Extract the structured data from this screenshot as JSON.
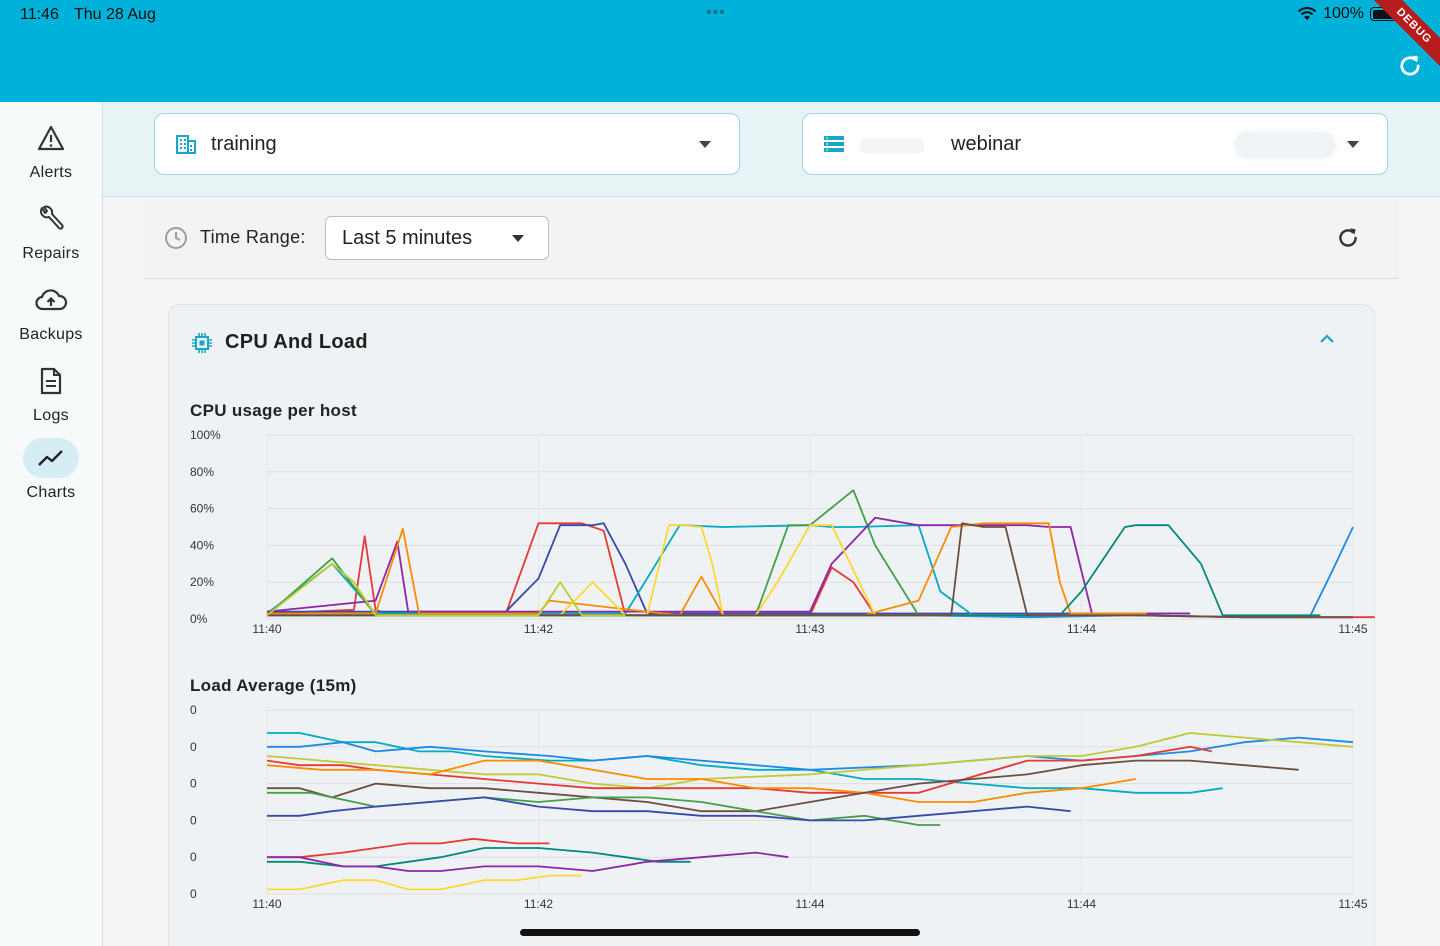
{
  "status_bar": {
    "time": "11:46",
    "date": "Thu 28 Aug",
    "dots": "•••",
    "battery": "100%",
    "debug": "DEBUG"
  },
  "nav": {
    "items": [
      {
        "label": "Alerts",
        "icon": "warning-icon"
      },
      {
        "label": "Repairs",
        "icon": "wrench-icon"
      },
      {
        "label": "Backups",
        "icon": "cloud-upload-icon"
      },
      {
        "label": "Logs",
        "icon": "document-icon"
      },
      {
        "label": "Charts",
        "icon": "chart-line-icon",
        "active": true
      }
    ]
  },
  "selectors": {
    "organization": {
      "value": "training",
      "icon": "building-icon"
    },
    "server": {
      "value": "webinar",
      "icon": "server-list-icon"
    }
  },
  "time_range": {
    "label": "Time Range:",
    "value": "Last 5 minutes"
  },
  "card": {
    "title": "CPU And Load",
    "icon": "cpu-icon"
  },
  "colors": {
    "accent": "#00b1d9",
    "primary_text": "#1f1f1f"
  },
  "chart_data": [
    {
      "type": "line",
      "title": "CPU usage per host",
      "ylim": [
        0,
        100
      ],
      "y_ticks": [
        "0%",
        "20%",
        "40%",
        "60%",
        "80%",
        "100%"
      ],
      "x_ticks": [
        "11:40",
        "11:42",
        "11:43",
        "11:44",
        "11:45"
      ],
      "grid": true,
      "series": [
        {
          "color": "#e53935",
          "x": [
            0,
            0.08,
            0.09,
            0.1,
            0.11,
            0.22,
            0.25,
            0.29,
            0.31,
            0.33,
            0.5,
            0.52,
            0.54,
            0.56,
            0.58,
            0.62,
            0.7,
            0.8,
            0.9,
            1.0,
            1.02
          ],
          "y": [
            3,
            5,
            45,
            5,
            3,
            3,
            52,
            52,
            48,
            2,
            2,
            28,
            20,
            2,
            2,
            2,
            2,
            2,
            1,
            1,
            1
          ]
        },
        {
          "color": "#1e88e5",
          "x": [
            0,
            0.1,
            0.3,
            0.5,
            0.6,
            0.7,
            0.8,
            0.9,
            0.96,
            0.98,
            1.0
          ],
          "y": [
            2,
            2,
            2,
            2,
            2,
            1,
            2,
            1,
            1,
            25,
            50
          ]
        },
        {
          "color": "#3949ab",
          "x": [
            0,
            0.1,
            0.22,
            0.25,
            0.27,
            0.3,
            0.31,
            0.33,
            0.35,
            0.5,
            0.7,
            0.85
          ],
          "y": [
            4,
            4,
            4,
            22,
            51,
            51,
            52,
            30,
            3,
            3,
            3,
            3
          ]
        },
        {
          "color": "#00acc1",
          "x": [
            0,
            0.06,
            0.1,
            0.2,
            0.33,
            0.35,
            0.38,
            0.42,
            0.5,
            0.52,
            0.54,
            0.6,
            0.62,
            0.65,
            0.67,
            0.75
          ],
          "y": [
            3,
            30,
            3,
            3,
            3,
            22,
            51,
            50,
            51,
            50,
            50,
            51,
            15,
            2,
            2,
            2
          ]
        },
        {
          "color": "#43a047",
          "x": [
            0,
            0.06,
            0.1,
            0.2,
            0.45,
            0.48,
            0.5,
            0.54,
            0.56,
            0.6,
            0.65
          ],
          "y": [
            2,
            33,
            2,
            2,
            2,
            51,
            51,
            70,
            40,
            2,
            2
          ]
        },
        {
          "color": "#8e24aa",
          "x": [
            0,
            0.1,
            0.12,
            0.13,
            0.15,
            0.5,
            0.52,
            0.56,
            0.6,
            0.7,
            0.72,
            0.74,
            0.76,
            0.8,
            0.85
          ],
          "y": [
            4,
            10,
            42,
            4,
            4,
            4,
            30,
            55,
            51,
            51,
            50,
            50,
            2,
            3,
            3
          ]
        },
        {
          "color": "#fb8c00",
          "x": [
            0,
            0.1,
            0.125,
            0.14,
            0.25,
            0.26,
            0.38,
            0.4,
            0.42,
            0.5,
            0.52,
            0.55,
            0.6,
            0.63,
            0.66,
            0.7,
            0.72,
            0.73,
            0.74,
            0.77,
            0.81
          ],
          "y": [
            3,
            3,
            49,
            3,
            3,
            10,
            2,
            23,
            2,
            2,
            2,
            2,
            10,
            50,
            52,
            52,
            52,
            20,
            3,
            3,
            3
          ]
        },
        {
          "color": "#fdd835",
          "x": [
            0,
            0.1,
            0.2,
            0.27,
            0.3,
            0.33,
            0.35,
            0.37,
            0.38,
            0.4,
            0.41,
            0.42,
            0.45,
            0.47,
            0.5,
            0.52,
            0.56,
            0.6,
            0.7,
            0.8
          ],
          "y": [
            2,
            2,
            2,
            2,
            20,
            2,
            2,
            51,
            51,
            50,
            30,
            2,
            2,
            20,
            51,
            51,
            2,
            2,
            2,
            2
          ]
        },
        {
          "color": "#00897b",
          "x": [
            0,
            0.3,
            0.6,
            0.7,
            0.72,
            0.73,
            0.75,
            0.79,
            0.8,
            0.83,
            0.86,
            0.88,
            0.95,
            0.97
          ],
          "y": [
            2,
            2,
            2,
            2,
            2,
            2,
            15,
            50,
            51,
            51,
            30,
            2,
            2,
            2
          ]
        },
        {
          "color": "#6d4c41",
          "x": [
            0,
            0.2,
            0.4,
            0.6,
            0.63,
            0.64,
            0.66,
            0.68,
            0.7,
            0.72,
            0.8,
            0.9,
            1.0
          ],
          "y": [
            2,
            2,
            2,
            2,
            2,
            52,
            50,
            50,
            2,
            2,
            2,
            1,
            1
          ]
        },
        {
          "color": "#c0ca33",
          "x": [
            0,
            0.06,
            0.08,
            0.1,
            0.2,
            0.25,
            0.27,
            0.29,
            0.31,
            0.33
          ],
          "y": [
            2,
            30,
            20,
            2,
            2,
            2,
            20,
            2,
            2,
            2
          ]
        }
      ]
    },
    {
      "type": "line",
      "title": "Load Average (15m)",
      "y_ticks": [
        "0",
        "0",
        "0",
        "0",
        "0",
        "0"
      ],
      "x_ticks": [
        "11:40",
        "11:42",
        "11:44",
        "11:44",
        "11:45"
      ],
      "grid": true,
      "series": [
        {
          "color": "#00acc1",
          "x": [
            0,
            0.03,
            0.07,
            0.1,
            0.14,
            0.17,
            0.2,
            0.26,
            0.3,
            0.35,
            0.4,
            0.45,
            0.5,
            0.55,
            0.6,
            0.65,
            0.7,
            0.75,
            0.8,
            0.85,
            0.88
          ],
          "y": [
            5.5,
            5.5,
            5.3,
            5.3,
            5.1,
            5.1,
            5.0,
            4.9,
            4.9,
            5.0,
            4.8,
            4.7,
            4.7,
            4.5,
            4.5,
            4.4,
            4.3,
            4.3,
            4.2,
            4.2,
            4.3
          ]
        },
        {
          "color": "#1e88e5",
          "x": [
            0,
            0.03,
            0.07,
            0.1,
            0.15,
            0.2,
            0.26,
            0.3,
            0.35,
            0.4,
            0.5,
            0.6,
            0.7,
            0.75,
            0.8,
            0.85,
            0.9,
            0.95,
            1.0
          ],
          "y": [
            5.2,
            5.2,
            5.3,
            5.1,
            5.2,
            5.1,
            5.0,
            4.9,
            5.0,
            4.9,
            4.7,
            4.8,
            5.0,
            4.9,
            5.0,
            5.1,
            5.3,
            5.4,
            5.3
          ]
        },
        {
          "color": "#c0ca33",
          "x": [
            0,
            0.05,
            0.1,
            0.15,
            0.2,
            0.25,
            0.3,
            0.35,
            0.4,
            0.5,
            0.6,
            0.7,
            0.75,
            0.8,
            0.85,
            0.9,
            0.95,
            1.0
          ],
          "y": [
            5.0,
            4.9,
            4.8,
            4.7,
            4.6,
            4.6,
            4.4,
            4.3,
            4.5,
            4.6,
            4.8,
            5.0,
            5.0,
            5.2,
            5.5,
            5.4,
            5.3,
            5.2
          ]
        },
        {
          "color": "#e53935",
          "x": [
            0,
            0.03,
            0.07,
            0.1,
            0.15,
            0.2,
            0.25,
            0.3,
            0.35,
            0.4,
            0.45,
            0.5,
            0.6,
            0.7,
            0.75,
            0.8,
            0.85,
            0.87
          ],
          "y": [
            4.9,
            4.8,
            4.8,
            4.7,
            4.6,
            4.5,
            4.4,
            4.3,
            4.3,
            4.3,
            4.3,
            4.2,
            4.2,
            4.9,
            4.9,
            5.0,
            5.2,
            5.1
          ]
        },
        {
          "color": "#fb8c00",
          "x": [
            0,
            0.05,
            0.1,
            0.15,
            0.2,
            0.25,
            0.3,
            0.35,
            0.4,
            0.45,
            0.5,
            0.55,
            0.6,
            0.65,
            0.7,
            0.75,
            0.8
          ],
          "y": [
            4.8,
            4.7,
            4.7,
            4.6,
            4.9,
            4.9,
            4.7,
            4.5,
            4.5,
            4.3,
            4.3,
            4.2,
            4.0,
            4.0,
            4.2,
            4.3,
            4.5
          ]
        },
        {
          "color": "#6d4c41",
          "x": [
            0,
            0.03,
            0.06,
            0.1,
            0.15,
            0.2,
            0.25,
            0.3,
            0.35,
            0.4,
            0.45,
            0.5,
            0.55,
            0.6,
            0.65,
            0.7,
            0.75,
            0.8,
            0.85,
            0.9,
            0.95
          ],
          "y": [
            4.3,
            4.3,
            4.1,
            4.4,
            4.3,
            4.3,
            4.2,
            4.1,
            4.0,
            3.8,
            3.8,
            4.0,
            4.2,
            4.4,
            4.5,
            4.6,
            4.8,
            4.9,
            4.9,
            4.8,
            4.7
          ]
        },
        {
          "color": "#43a047",
          "x": [
            0,
            0.04,
            0.08,
            0.1,
            0.15,
            0.2,
            0.25,
            0.3,
            0.35,
            0.4,
            0.45,
            0.5,
            0.55,
            0.6,
            0.62
          ],
          "y": [
            4.2,
            4.2,
            4.0,
            3.9,
            4.0,
            4.1,
            4.0,
            4.1,
            4.1,
            4.0,
            3.8,
            3.6,
            3.7,
            3.5,
            3.5
          ]
        },
        {
          "color": "#3949ab",
          "x": [
            0,
            0.03,
            0.06,
            0.1,
            0.15,
            0.2,
            0.25,
            0.3,
            0.35,
            0.4,
            0.45,
            0.5,
            0.55,
            0.6,
            0.65,
            0.7,
            0.74
          ],
          "y": [
            3.7,
            3.7,
            3.8,
            3.9,
            4.0,
            4.1,
            3.9,
            3.8,
            3.8,
            3.7,
            3.7,
            3.6,
            3.6,
            3.7,
            3.8,
            3.9,
            3.8
          ]
        },
        {
          "color": "#e53935",
          "x": [
            0,
            0.03,
            0.07,
            0.1,
            0.13,
            0.16,
            0.19,
            0.23,
            0.26
          ],
          "y": [
            2.8,
            2.8,
            2.9,
            3.0,
            3.1,
            3.1,
            3.2,
            3.1,
            3.1
          ]
        },
        {
          "color": "#00897b",
          "x": [
            0,
            0.03,
            0.07,
            0.1,
            0.13,
            0.16,
            0.2,
            0.25,
            0.3,
            0.33,
            0.36,
            0.39
          ],
          "y": [
            2.7,
            2.7,
            2.6,
            2.6,
            2.7,
            2.8,
            3.0,
            3.0,
            2.9,
            2.8,
            2.7,
            2.7
          ]
        },
        {
          "color": "#8e24aa",
          "x": [
            0,
            0.03,
            0.07,
            0.1,
            0.13,
            0.16,
            0.2,
            0.25,
            0.3,
            0.35,
            0.4,
            0.45,
            0.48
          ],
          "y": [
            2.8,
            2.8,
            2.6,
            2.6,
            2.5,
            2.5,
            2.6,
            2.6,
            2.5,
            2.7,
            2.8,
            2.9,
            2.8
          ]
        },
        {
          "color": "#fdd835",
          "x": [
            0,
            0.03,
            0.07,
            0.1,
            0.13,
            0.16,
            0.2,
            0.23,
            0.26,
            0.29
          ],
          "y": [
            2.1,
            2.1,
            2.3,
            2.3,
            2.1,
            2.1,
            2.3,
            2.3,
            2.4,
            2.4
          ]
        }
      ]
    }
  ]
}
